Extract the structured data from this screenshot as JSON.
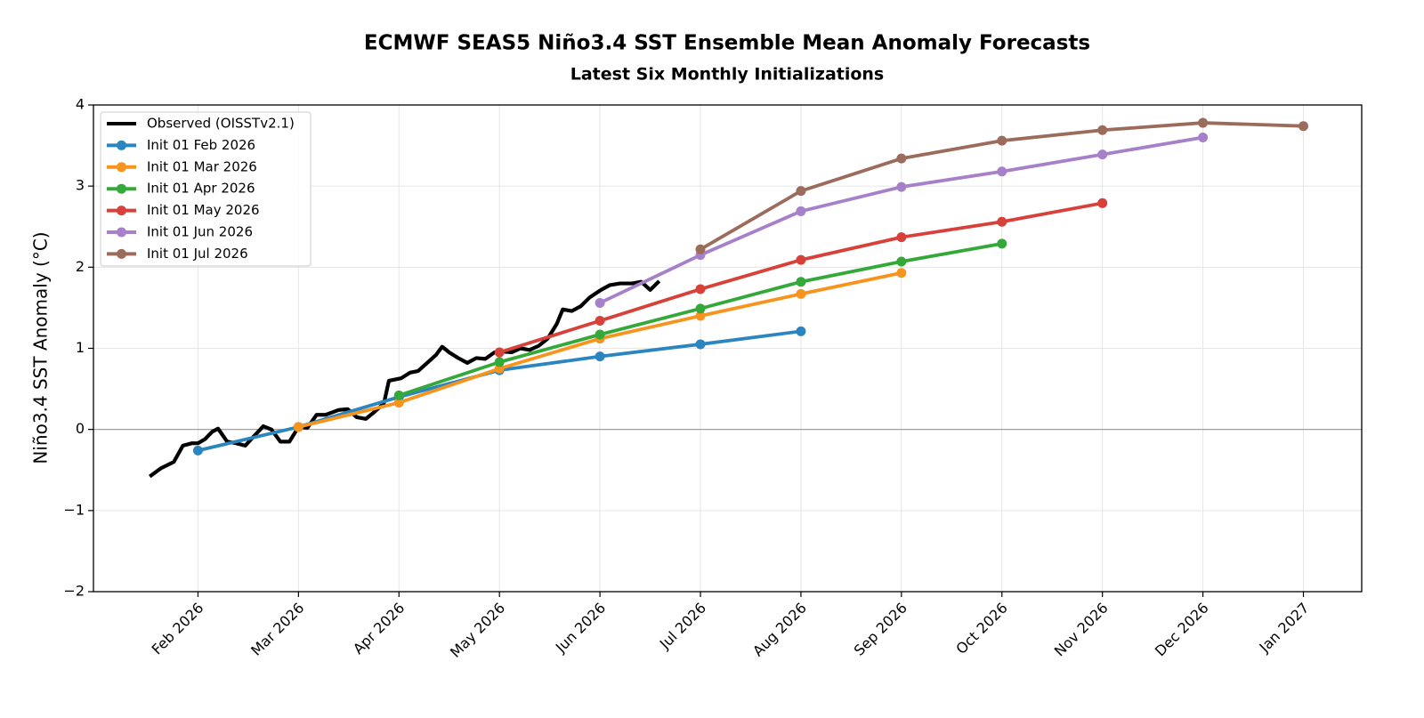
{
  "chart_data": {
    "type": "line",
    "title": "ECMWF SEAS5 Niño3.4 SST Ensemble Mean Anomaly Forecasts",
    "subtitle": "Latest Six Monthly Initializations",
    "y_label": "Niño3.4 SST Anomaly (°C)",
    "xlim": [
      0.96,
      13.58
    ],
    "xticks": [
      {
        "value": 2,
        "label": "Feb 2026"
      },
      {
        "value": 3,
        "label": "Mar 2026"
      },
      {
        "value": 4,
        "label": "Apr 2026"
      },
      {
        "value": 5,
        "label": "May 2026"
      },
      {
        "value": 6,
        "label": "Jun 2026"
      },
      {
        "value": 7,
        "label": "Jul 2026"
      },
      {
        "value": 8,
        "label": "Aug 2026"
      },
      {
        "value": 9,
        "label": "Sep 2026"
      },
      {
        "value": 10,
        "label": "Oct 2026"
      },
      {
        "value": 11,
        "label": "Nov 2026"
      },
      {
        "value": 12,
        "label": "Dec 2026"
      },
      {
        "value": 13,
        "label": "Jan 2027"
      }
    ],
    "ylim": [
      -2,
      4
    ],
    "yticks": [
      {
        "value": -2,
        "label": "−2"
      },
      {
        "value": -1,
        "label": "−1"
      },
      0,
      1,
      2,
      3,
      4
    ],
    "grid": true,
    "legend": "upper left",
    "series": [
      {
        "name": "Observed (OISSTv2.1)",
        "color": "#000000",
        "markers": false,
        "x": [
          1.52,
          1.63,
          1.76,
          1.85,
          1.94,
          2.0,
          2.07,
          2.14,
          2.2,
          2.29,
          2.38,
          2.47,
          2.56,
          2.65,
          2.73,
          2.82,
          2.91,
          3.0,
          3.09,
          3.18,
          3.27,
          3.4,
          3.49,
          3.58,
          3.67,
          3.76,
          3.85,
          3.9,
          4.02,
          4.11,
          4.19,
          4.28,
          4.37,
          4.43,
          4.5,
          4.59,
          4.68,
          4.77,
          4.86,
          4.95,
          5.04,
          5.12,
          5.21,
          5.3,
          5.39,
          5.48,
          5.57,
          5.63,
          5.72,
          5.81,
          5.9,
          6.01,
          6.1,
          6.2,
          6.32,
          6.41,
          6.5,
          6.59
        ],
        "values": [
          -0.58,
          -0.48,
          -0.4,
          -0.2,
          -0.17,
          -0.17,
          -0.12,
          -0.03,
          0.01,
          -0.15,
          -0.17,
          -0.2,
          -0.08,
          0.04,
          0.0,
          -0.15,
          -0.15,
          0.03,
          0.02,
          0.18,
          0.18,
          0.24,
          0.25,
          0.15,
          0.13,
          0.22,
          0.32,
          0.6,
          0.63,
          0.7,
          0.72,
          0.82,
          0.92,
          1.02,
          0.95,
          0.88,
          0.82,
          0.88,
          0.87,
          0.95,
          0.96,
          0.95,
          1.0,
          0.98,
          1.03,
          1.12,
          1.3,
          1.48,
          1.46,
          1.52,
          1.63,
          1.72,
          1.78,
          1.8,
          1.8,
          1.82,
          1.72,
          1.83
        ]
      },
      {
        "name": "Init 01 Feb 2026",
        "color": "#2b86c0",
        "markers": true,
        "x": [
          2,
          3,
          4,
          5,
          6,
          7,
          8
        ],
        "values": [
          -0.26,
          0.03,
          0.4,
          0.73,
          0.9,
          1.05,
          1.21
        ]
      },
      {
        "name": "Init 01 Mar 2026",
        "color": "#f7941d",
        "markers": true,
        "x": [
          3,
          4,
          5,
          6,
          7,
          8,
          9
        ],
        "values": [
          0.03,
          0.33,
          0.75,
          1.12,
          1.4,
          1.67,
          1.93
        ]
      },
      {
        "name": "Init 01 Apr 2026",
        "color": "#35a83a",
        "markers": true,
        "x": [
          4,
          5,
          6,
          7,
          8,
          9,
          10
        ],
        "values": [
          0.42,
          0.83,
          1.17,
          1.49,
          1.82,
          2.07,
          2.29
        ]
      },
      {
        "name": "Init 01 May 2026",
        "color": "#d8403a",
        "markers": true,
        "x": [
          5,
          6,
          7,
          8,
          9,
          10,
          11
        ],
        "values": [
          0.95,
          1.34,
          1.73,
          2.09,
          2.37,
          2.56,
          2.79
        ]
      },
      {
        "name": "Init 01 Jun 2026",
        "color": "#a680c8",
        "markers": true,
        "x": [
          6,
          7,
          8,
          9,
          10,
          11,
          12
        ],
        "values": [
          1.56,
          2.15,
          2.69,
          2.99,
          3.18,
          3.39,
          3.6
        ]
      },
      {
        "name": "Init 01 Jul 2026",
        "color": "#9b6b5b",
        "markers": true,
        "x": [
          7,
          8,
          9,
          10,
          11,
          12,
          13
        ],
        "values": [
          2.22,
          2.94,
          3.34,
          3.56,
          3.69,
          3.78,
          3.74
        ]
      }
    ]
  }
}
